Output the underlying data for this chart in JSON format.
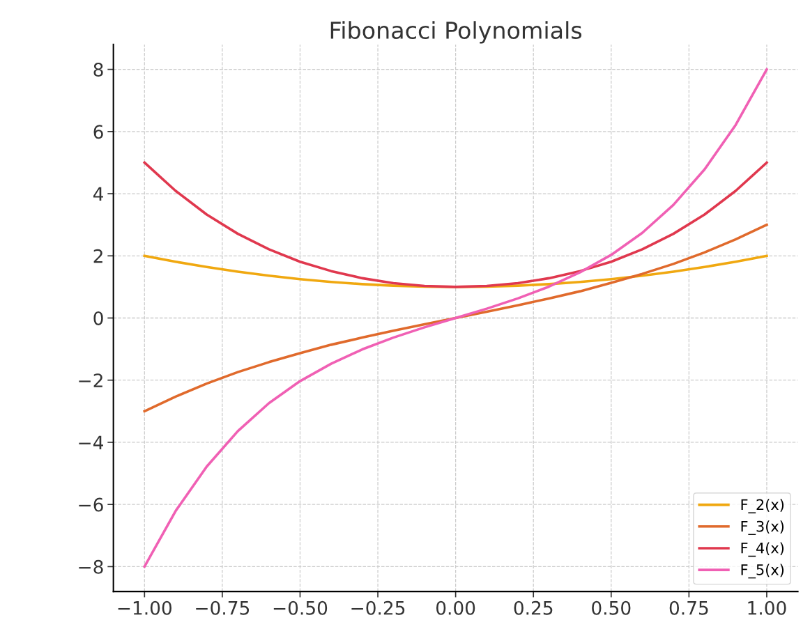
{
  "chart_data": {
    "type": "line",
    "title": "Fibonacci Polynomials",
    "x": [
      -1,
      -0.9,
      -0.8,
      -0.7,
      -0.6,
      -0.5,
      -0.4,
      -0.3,
      -0.2,
      -0.1,
      0,
      0.1,
      0.2,
      0.3,
      0.4,
      0.5,
      0.6,
      0.7,
      0.8,
      0.9,
      1
    ],
    "series": [
      {
        "name": "F_2(x)",
        "color": "#f0a810",
        "values": [
          2,
          1.81,
          1.64,
          1.49,
          1.36,
          1.25,
          1.16,
          1.09,
          1.04,
          1.01,
          1,
          1.01,
          1.04,
          1.09,
          1.16,
          1.25,
          1.36,
          1.49,
          1.64,
          1.81,
          2
        ]
      },
      {
        "name": "F_3(x)",
        "color": "#e06a2c",
        "values": [
          -3,
          -2.53,
          -2.11,
          -1.74,
          -1.42,
          -1.13,
          -0.86,
          -0.63,
          -0.41,
          -0.2,
          0,
          0.2,
          0.41,
          0.63,
          0.86,
          1.13,
          1.42,
          1.74,
          2.11,
          2.53,
          3
        ]
      },
      {
        "name": "F_4(x)",
        "color": "#e0384e",
        "values": [
          5,
          4.09,
          3.33,
          2.71,
          2.21,
          1.81,
          1.51,
          1.28,
          1.12,
          1.03,
          1,
          1.03,
          1.12,
          1.28,
          1.51,
          1.81,
          2.21,
          2.71,
          3.33,
          4.09,
          5
        ]
      },
      {
        "name": "F_5(x)",
        "color": "#f060b4",
        "values": [
          -8,
          -6.21,
          -4.78,
          -3.64,
          -2.74,
          -2.03,
          -1.47,
          -1.01,
          -0.63,
          -0.3,
          0,
          0.3,
          0.63,
          1.01,
          1.47,
          2.03,
          2.74,
          3.64,
          4.78,
          6.21,
          8
        ]
      }
    ],
    "xlim": [
      -1.1,
      1.1
    ],
    "ylim": [
      -8.8,
      8.8
    ],
    "xticks": [
      {
        "value": -1,
        "label": "−1.00"
      },
      {
        "value": -0.75,
        "label": "−0.75"
      },
      {
        "value": -0.5,
        "label": "−0.50"
      },
      {
        "value": -0.25,
        "label": "−0.25"
      },
      {
        "value": 0,
        "label": "0.00"
      },
      {
        "value": 0.25,
        "label": "0.25"
      },
      {
        "value": 0.5,
        "label": "0.50"
      },
      {
        "value": 0.75,
        "label": "0.75"
      },
      {
        "value": 1,
        "label": "1.00"
      }
    ],
    "yticks": [
      {
        "value": -8,
        "label": "−8"
      },
      {
        "value": -6,
        "label": "−6"
      },
      {
        "value": -4,
        "label": "−4"
      },
      {
        "value": -2,
        "label": "−2"
      },
      0,
      2,
      4,
      6,
      8
    ],
    "grid": true,
    "legend": "bottom right",
    "marker": "none",
    "line_style": "solid"
  }
}
